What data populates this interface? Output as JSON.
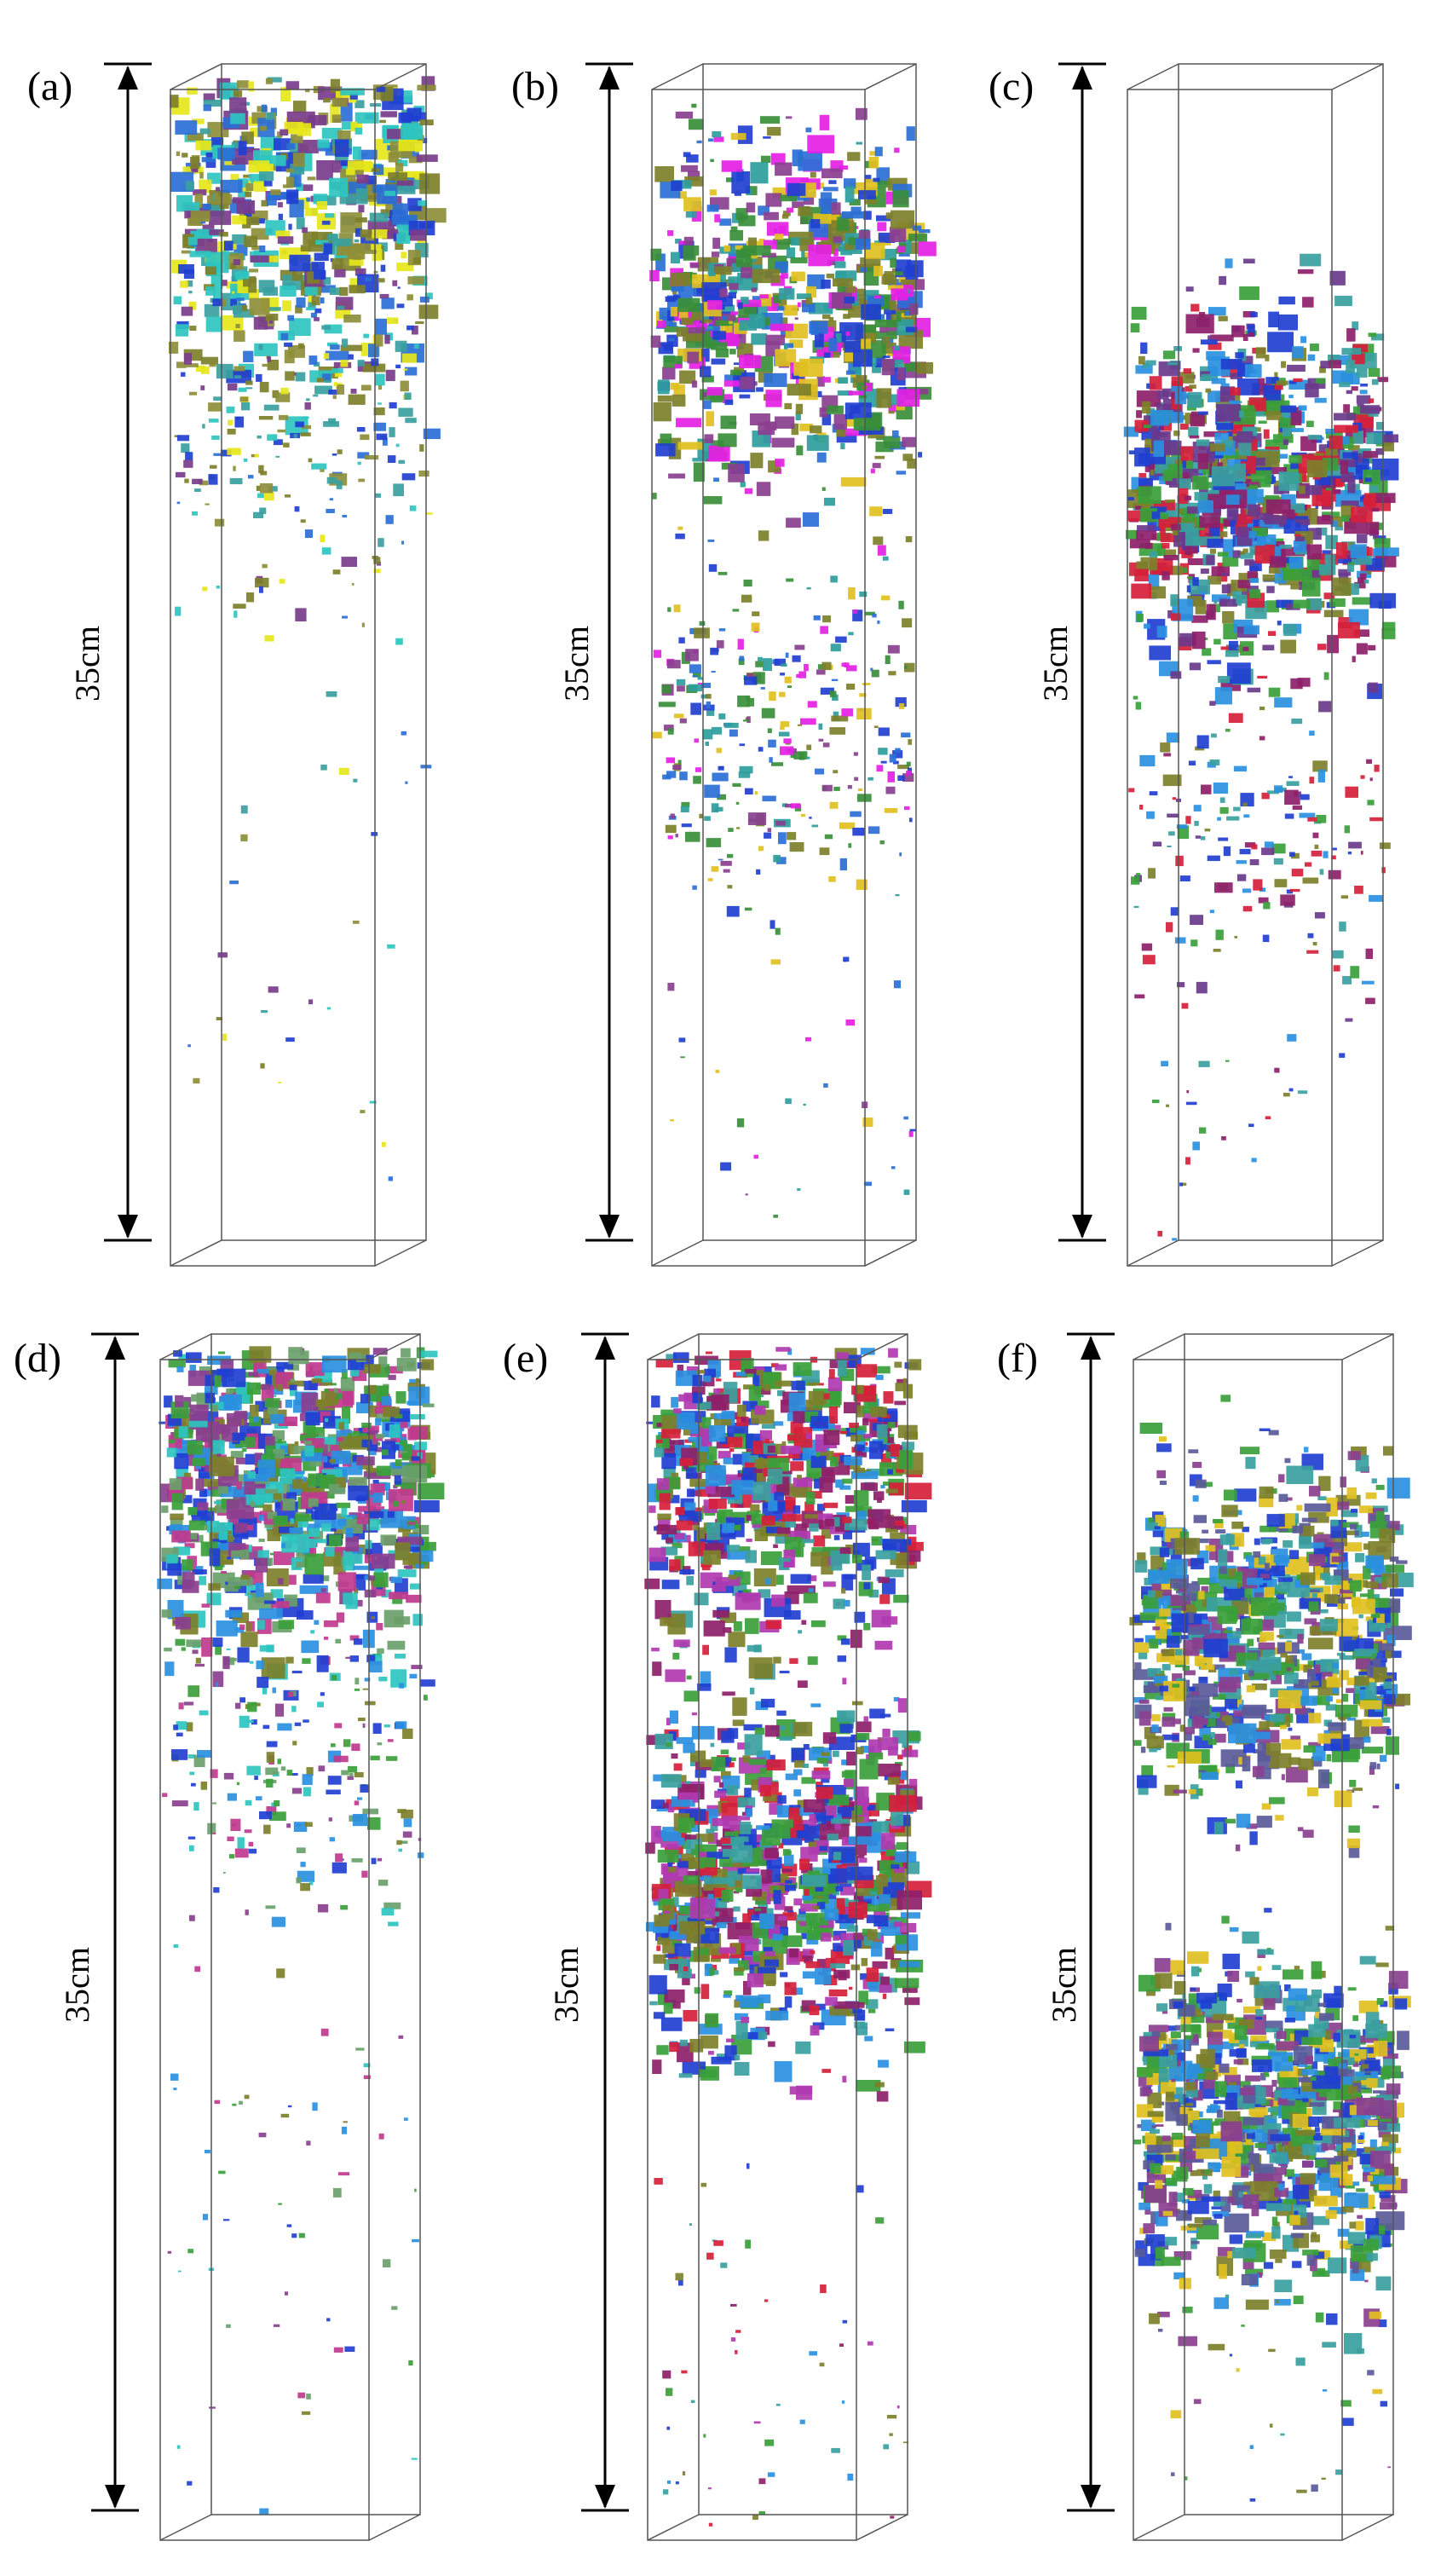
{
  "figure": {
    "panels": [
      {
        "id": "a",
        "label": "(a)",
        "scale_label": "35cm",
        "palette": [
          "#2ec4c0",
          "#7d7f2a",
          "#1f3fd1",
          "#e6e61a",
          "#7a3c8c",
          "#2a6fd6",
          "#3aa0a0",
          "#8e8e3a"
        ]
      },
      {
        "id": "b",
        "label": "(b)",
        "scale_label": "35cm",
        "palette": [
          "#e51fe5",
          "#7d7f2a",
          "#1f3fd1",
          "#2e9d9d",
          "#8a3f8f",
          "#e0c020",
          "#3a8e3a",
          "#2a6fd6"
        ]
      },
      {
        "id": "c",
        "label": "(c)",
        "scale_label": "35cm",
        "palette": [
          "#8e1f6a",
          "#d61f3a",
          "#1f3fd1",
          "#3aa0a0",
          "#7d7f2a",
          "#2a8fe0",
          "#3aa03a",
          "#6a3a8c"
        ]
      },
      {
        "id": "d",
        "label": "(d)",
        "scale_label": "35cm",
        "palette": [
          "#2a8fe0",
          "#1f3fd1",
          "#7d7f2a",
          "#2ec4c0",
          "#8a3f8f",
          "#3aa03a",
          "#c03a8e",
          "#6aa06a"
        ]
      },
      {
        "id": "e",
        "label": "(e)",
        "scale_label": "35cm",
        "palette": [
          "#8e1f6a",
          "#1f3fd1",
          "#7d7f2a",
          "#3aa0a0",
          "#2a8fe0",
          "#d61f3a",
          "#3aa03a",
          "#b03ab0"
        ]
      },
      {
        "id": "f",
        "label": "(f)",
        "scale_label": "35cm",
        "palette": [
          "#3aa0a0",
          "#7d7f2a",
          "#1f3fd1",
          "#8a3f8f",
          "#2a8fe0",
          "#e0c020",
          "#3aa03a",
          "#5a5a9a"
        ]
      }
    ]
  }
}
